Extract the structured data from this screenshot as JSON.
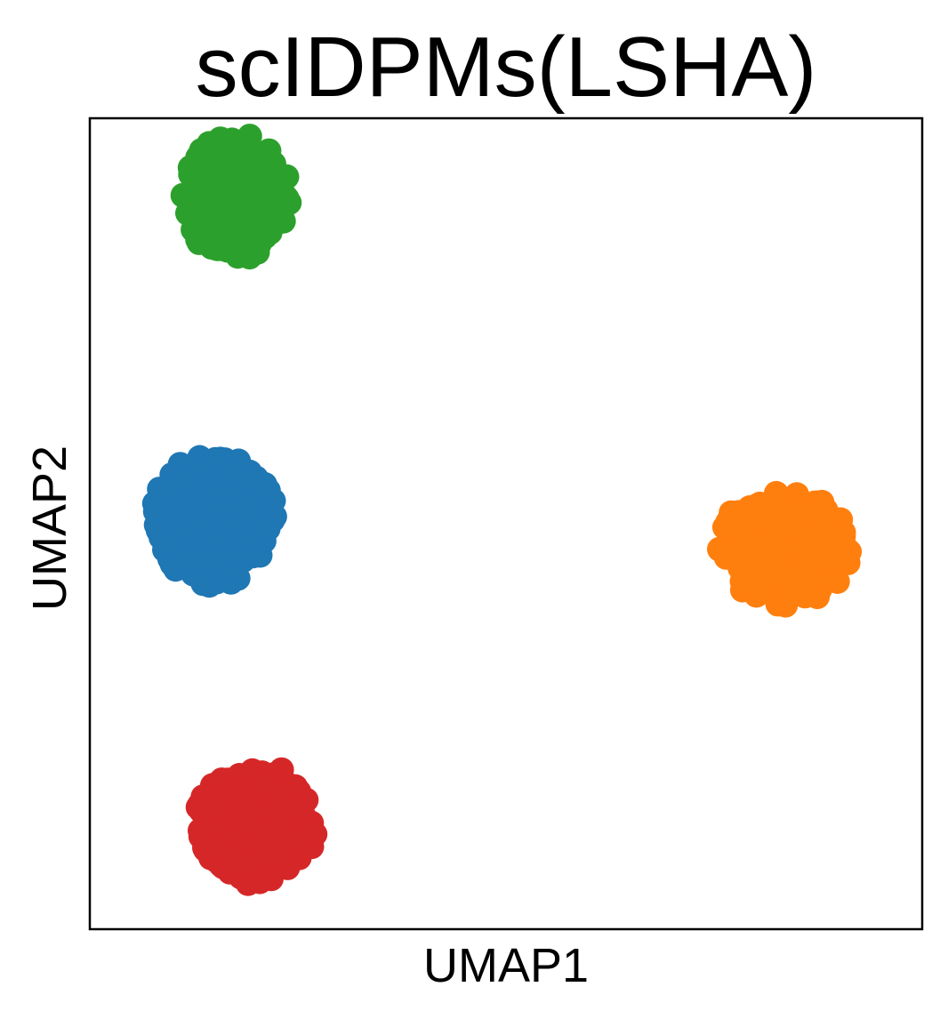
{
  "chart_data": {
    "type": "scatter",
    "title": "scIDPMs(LSHA)",
    "xlabel": "UMAP1",
    "ylabel": "UMAP2",
    "xlim": [
      0,
      100
    ],
    "ylim": [
      0,
      100
    ],
    "ticks": "none",
    "grid": false,
    "legend": "none",
    "clusters": [
      {
        "color": "#2ca02c",
        "cx": 17.5,
        "cy": 90.3,
        "rx": 6.2,
        "ry": 7.7
      },
      {
        "color": "#1f77b4",
        "cx": 15.0,
        "cy": 50.7,
        "rx": 7.3,
        "ry": 7.9
      },
      {
        "color": "#ff7f0e",
        "cx": 83.5,
        "cy": 47.1,
        "rx": 7.8,
        "ry": 6.6
      },
      {
        "color": "#d62728",
        "cx": 20.0,
        "cy": 12.9,
        "rx": 7.3,
        "ry": 7.1
      }
    ]
  }
}
